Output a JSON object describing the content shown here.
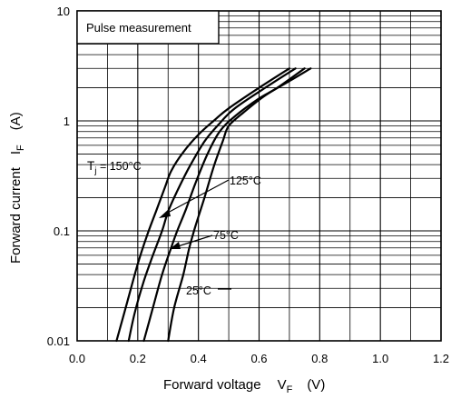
{
  "chart_data": {
    "type": "line",
    "title": "",
    "note": "Pulse measurement",
    "xlabel": {
      "main": "Forward voltage",
      "symbol": "V",
      "subscript": "F",
      "unit": "(V)"
    },
    "ylabel": {
      "main": "Forward current",
      "symbol": "I",
      "subscript": "F",
      "unit": "(A)"
    },
    "xlim": [
      0.0,
      1.2
    ],
    "ylim": [
      0.01,
      10
    ],
    "yscale": "log",
    "xticks": [
      0.0,
      0.2,
      0.4,
      0.6,
      0.8,
      1.0,
      1.2
    ],
    "xtick_labels": [
      "0.0",
      "0.2",
      "0.4",
      "0.6",
      "0.8",
      "1.0",
      "1.2"
    ],
    "yticks": [
      0.01,
      0.1,
      1,
      10
    ],
    "ytick_labels": [
      "0.01",
      "0.1",
      "1",
      "10"
    ],
    "grid": true,
    "series": [
      {
        "name": "Tj = 150°C",
        "label_parts": {
          "symbol": "T",
          "subscript": "j",
          "rest": " = 150°C"
        },
        "x": [
          0.13,
          0.16,
          0.2,
          0.23,
          0.26,
          0.29,
          0.31,
          0.35,
          0.4,
          0.45,
          0.5,
          0.6,
          0.7
        ],
        "y": [
          0.01,
          0.02,
          0.05,
          0.09,
          0.15,
          0.25,
          0.35,
          0.52,
          0.75,
          1.0,
          1.3,
          2.0,
          3.0
        ]
      },
      {
        "name": "125°C",
        "x": [
          0.17,
          0.19,
          0.22,
          0.25,
          0.28,
          0.3,
          0.33,
          0.37,
          0.42,
          0.47,
          0.52,
          0.62,
          0.72
        ],
        "y": [
          0.01,
          0.018,
          0.035,
          0.06,
          0.1,
          0.15,
          0.23,
          0.38,
          0.65,
          0.95,
          1.3,
          2.0,
          3.0
        ]
      },
      {
        "name": "75°C",
        "x": [
          0.22,
          0.25,
          0.28,
          0.31,
          0.33,
          0.36,
          0.39,
          0.43,
          0.47,
          0.52,
          0.6,
          0.66,
          0.75
        ],
        "y": [
          0.01,
          0.02,
          0.04,
          0.07,
          0.1,
          0.16,
          0.27,
          0.5,
          0.8,
          1.1,
          1.6,
          2.0,
          3.0
        ]
      },
      {
        "name": "25°C",
        "x": [
          0.3,
          0.32,
          0.35,
          0.37,
          0.39,
          0.42,
          0.45,
          0.48,
          0.5,
          0.55,
          0.62,
          0.7,
          0.77
        ],
        "y": [
          0.01,
          0.02,
          0.04,
          0.07,
          0.11,
          0.2,
          0.38,
          0.65,
          0.9,
          1.2,
          1.7,
          2.3,
          3.0
        ]
      }
    ]
  }
}
